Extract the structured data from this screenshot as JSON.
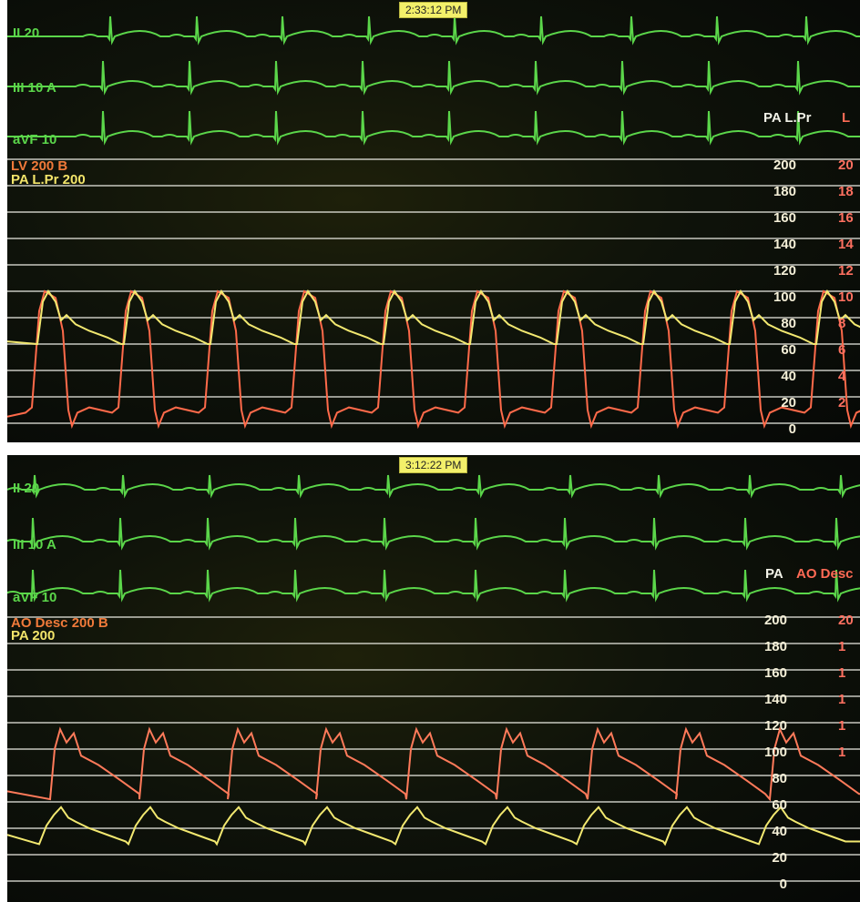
{
  "top_panel": {
    "timestamp": "2:33:12 PM",
    "ecg_labels": [
      "II 20",
      "III 10  A",
      "aVF 10"
    ],
    "pressure_label_lv": "LV  200   B",
    "pressure_label_pa": "PA L.Pr  200",
    "scale_header_pa": "PA L.Pr",
    "scale_header_second": "L",
    "scale_values": [
      "200",
      "180",
      "160",
      "140",
      "120",
      "100",
      "80",
      "60",
      "40",
      "20",
      "0"
    ],
    "scale_values_second": [
      "20",
      "18",
      "16",
      "14",
      "12",
      "10",
      "8",
      "6",
      "4",
      "2",
      ""
    ]
  },
  "bottom_panel": {
    "timestamp": "3:12:22 PM",
    "ecg_labels": [
      "II 20",
      "III 10  A",
      "aVF 10"
    ],
    "pressure_label_ao": "AO Desc  200   B",
    "pressure_label_pa": "PA  200",
    "scale_header_pa": "PA",
    "scale_header_ao": "AO Desc",
    "scale_values": [
      "200",
      "180",
      "160",
      "140",
      "120",
      "100",
      "80",
      "60",
      "40",
      "20",
      "0"
    ],
    "scale_values_second": [
      "20",
      "1",
      "1",
      "1",
      "1",
      "1",
      "",
      "",
      "",
      "",
      ""
    ]
  },
  "colors": {
    "ecg": "#5bd64a",
    "lv_trace": "#ff6a4a",
    "pa_trace": "#f2e870",
    "ao_trace": "#ff7a5a",
    "grid": "#e8e8e0"
  }
}
